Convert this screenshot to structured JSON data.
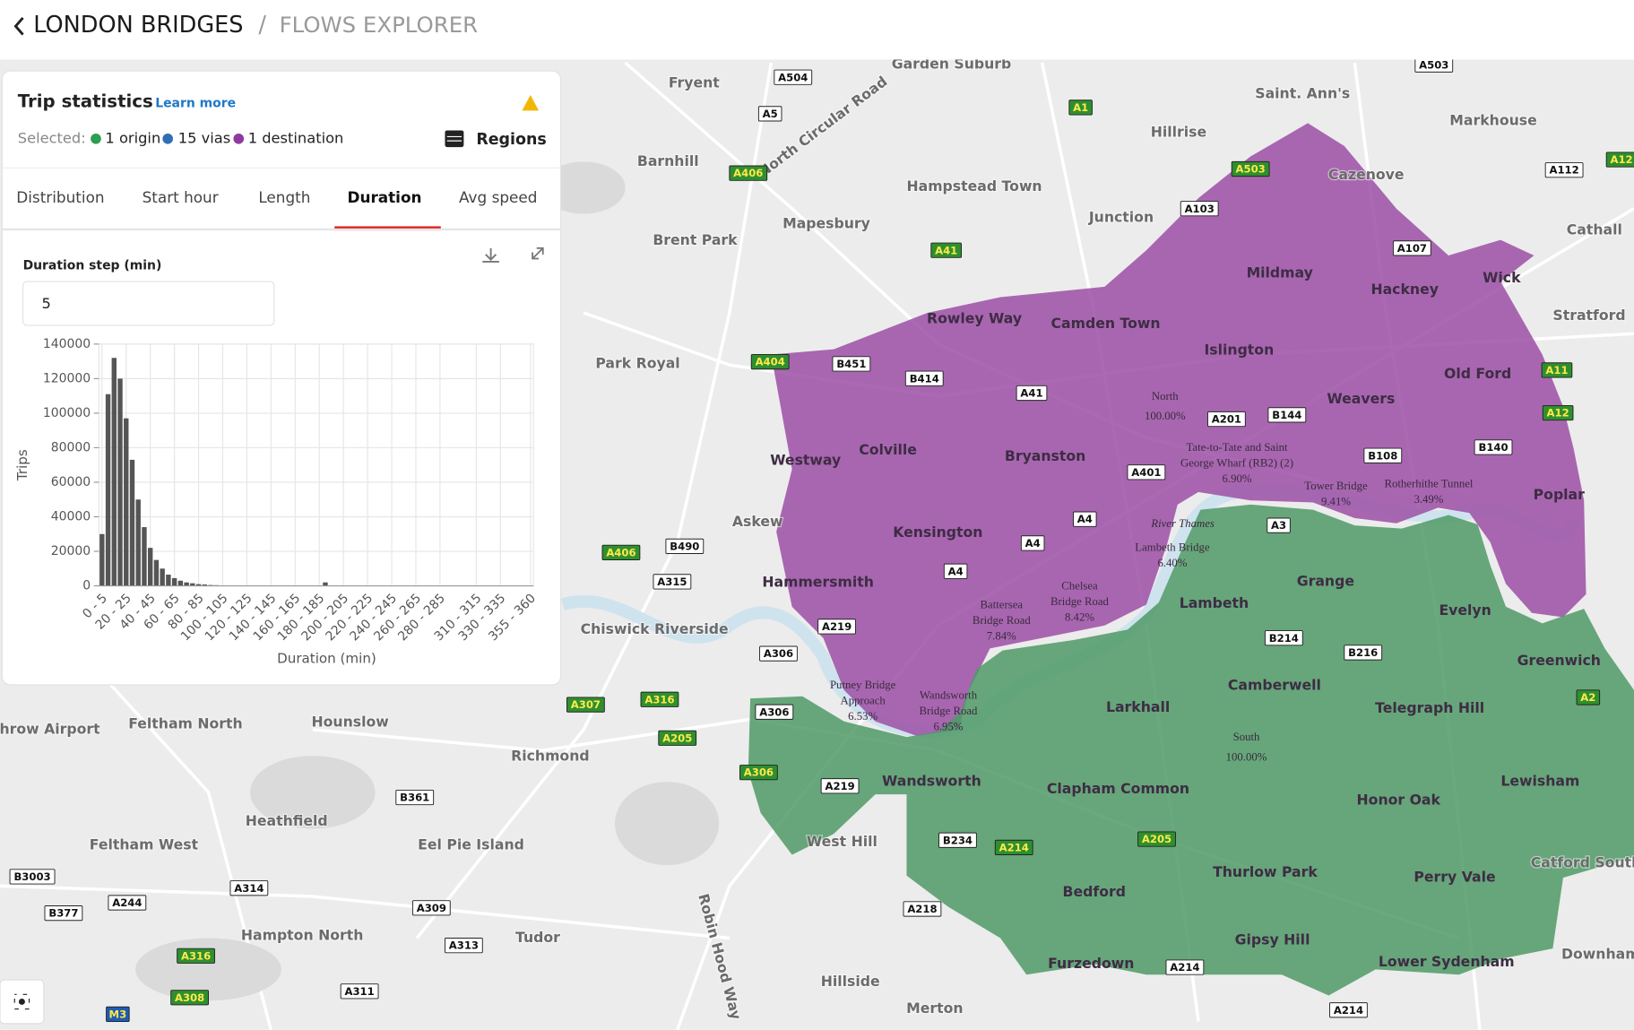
{
  "header": {
    "back_title": "LONDON BRIDGES",
    "separator": "/",
    "subtitle": "FLOWS EXPLORER"
  },
  "panel": {
    "title": "Trip statistics",
    "learn_more": "Learn more",
    "selected_label": "Selected:",
    "selected": [
      "1 origin",
      "15 vias",
      "1 destination"
    ],
    "regions_button": "Regions",
    "tabs": [
      "Distribution",
      "Start hour",
      "Length",
      "Duration",
      "Avg speed"
    ],
    "active_tab_index": 3,
    "step_label": "Duration step (min)",
    "step_value": "5"
  },
  "chart_data": {
    "type": "bar",
    "x_label": "Duration (min)",
    "y_label": "Trips",
    "color": "#555555",
    "grid": true,
    "categories": [
      "0 - 5",
      null,
      null,
      null,
      "20 - 25",
      null,
      null,
      null,
      "40 - 45",
      null,
      null,
      null,
      "60 - 65",
      null,
      null,
      null,
      "80 - 85",
      null,
      null,
      null,
      "100 - 105",
      null,
      null,
      null,
      "120 - 125",
      null,
      null,
      null,
      "140 - 145",
      null,
      null,
      null,
      "160 - 165",
      null,
      null,
      null,
      "180 - 185",
      null,
      null,
      null,
      "200 - 205",
      null,
      null,
      null,
      "220 - 225",
      null,
      null,
      null,
      "240 - 245",
      null,
      null,
      null,
      "260 - 265",
      null,
      null,
      null,
      "280 - 285",
      null,
      null,
      null,
      null,
      null,
      "310 - 315",
      null,
      null,
      null,
      "330 - 335",
      null,
      null,
      null,
      null,
      "355 - 360"
    ],
    "values": [
      30000,
      111000,
      132000,
      120000,
      97000,
      73000,
      50000,
      34000,
      22000,
      15000,
      10000,
      6500,
      4500,
      3000,
      2000,
      1500,
      1000,
      800,
      500,
      400,
      300,
      200,
      150,
      100,
      80,
      60,
      50,
      40,
      30,
      20,
      20,
      10,
      10,
      10,
      10,
      10,
      10,
      2000,
      0,
      0,
      0,
      0,
      0,
      0,
      0,
      0,
      0,
      0,
      0,
      0,
      0,
      0,
      0,
      0,
      0,
      0,
      0,
      0,
      0,
      0,
      0,
      0,
      0,
      0,
      0,
      0,
      0,
      0,
      0,
      0,
      0,
      0
    ],
    "ylim": [
      0,
      140000
    ],
    "yticks": [
      0,
      20000,
      40000,
      60000,
      80000,
      100000,
      120000,
      140000
    ]
  },
  "map": {
    "places": [
      "Garden Suburb",
      "Fryent",
      "Saint. Ann's",
      "Markhouse",
      "Hillrise",
      "Barnhill",
      "Cazenove",
      "Hampstead Town",
      "Junction",
      "Mapesbury",
      "Cathall",
      "Brent Park",
      "Mildmay",
      "Hackney",
      "Wick",
      "Stratford",
      "Rowley Way",
      "Camden Town",
      "Islington",
      "Park Royal",
      "Old Ford",
      "Weavers",
      "Westway",
      "Colville",
      "Bryanston",
      "Askew",
      "Kensington",
      "Poplar",
      "Hammersmith",
      "Lambeth",
      "Grange",
      "Evelyn",
      "Chiswick Riverside",
      "Greenwich",
      "Camberwell",
      "Larkhall",
      "Telegraph Hill",
      "Feltham North",
      "Hounslow",
      "Richmond",
      "Wandsworth",
      "Clapham Common",
      "Lewisham",
      "Honor Oak",
      "Heathfield",
      "West Hill",
      "Feltham West",
      "Eel Pie Island",
      "Thurlow Park",
      "Perry Vale",
      "Catford South",
      "Bedford",
      "Hampton North",
      "Tudor",
      "Gipsy Hill",
      "Lower Sydenham",
      "Furzedown",
      "Downham",
      "Hillside",
      "Merton",
      "athrow Airport",
      "North Circular Road",
      "Robin Hood Way",
      "River Thames"
    ],
    "roads": [
      "A504",
      "A5",
      "A1",
      "A503",
      "A406",
      "A112",
      "A12",
      "A503",
      "A103",
      "A107",
      "A41",
      "A404",
      "B451",
      "B414",
      "A41",
      "A11",
      "A201",
      "B144",
      "A12",
      "B108",
      "B140",
      "A401",
      "A4",
      "A3",
      "A4",
      "A406",
      "B490",
      "A315",
      "A4",
      "A219",
      "B214",
      "B216",
      "A306",
      "A307",
      "A316",
      "A306",
      "A205",
      "A306",
      "A219",
      "A2",
      "B361",
      "B234",
      "A214",
      "A205",
      "B3003",
      "A244",
      "A314",
      "B377",
      "A309",
      "A218",
      "A313",
      "A316",
      "A311",
      "A308",
      "A214",
      "A214",
      "M3"
    ],
    "regions": [
      {
        "name": "North",
        "share": "100.00%"
      },
      {
        "name": "South",
        "share": "100.00%"
      }
    ],
    "bridges": [
      {
        "lines": [
          "Tate-to-Tate and Saint",
          "George Wharf (RB2) (2)"
        ],
        "share": "6.90%"
      },
      {
        "lines": [
          "Tower Bridge"
        ],
        "share": "9.41%"
      },
      {
        "lines": [
          "Rotherhithe Tunnel"
        ],
        "share": "3.49%"
      },
      {
        "lines": [
          "Lambeth Bridge"
        ],
        "share": "6.40%"
      },
      {
        "lines": [
          "Chelsea",
          "Bridge Road"
        ],
        "share": "8.42%"
      },
      {
        "lines": [
          "Battersea",
          "Bridge Road"
        ],
        "share": "7.84%"
      },
      {
        "lines": [
          "Putney Bridge",
          "Approach"
        ],
        "share": "6.53%"
      },
      {
        "lines": [
          "Wandsworth",
          "Bridge Road"
        ],
        "share": "6.95%"
      }
    ]
  }
}
